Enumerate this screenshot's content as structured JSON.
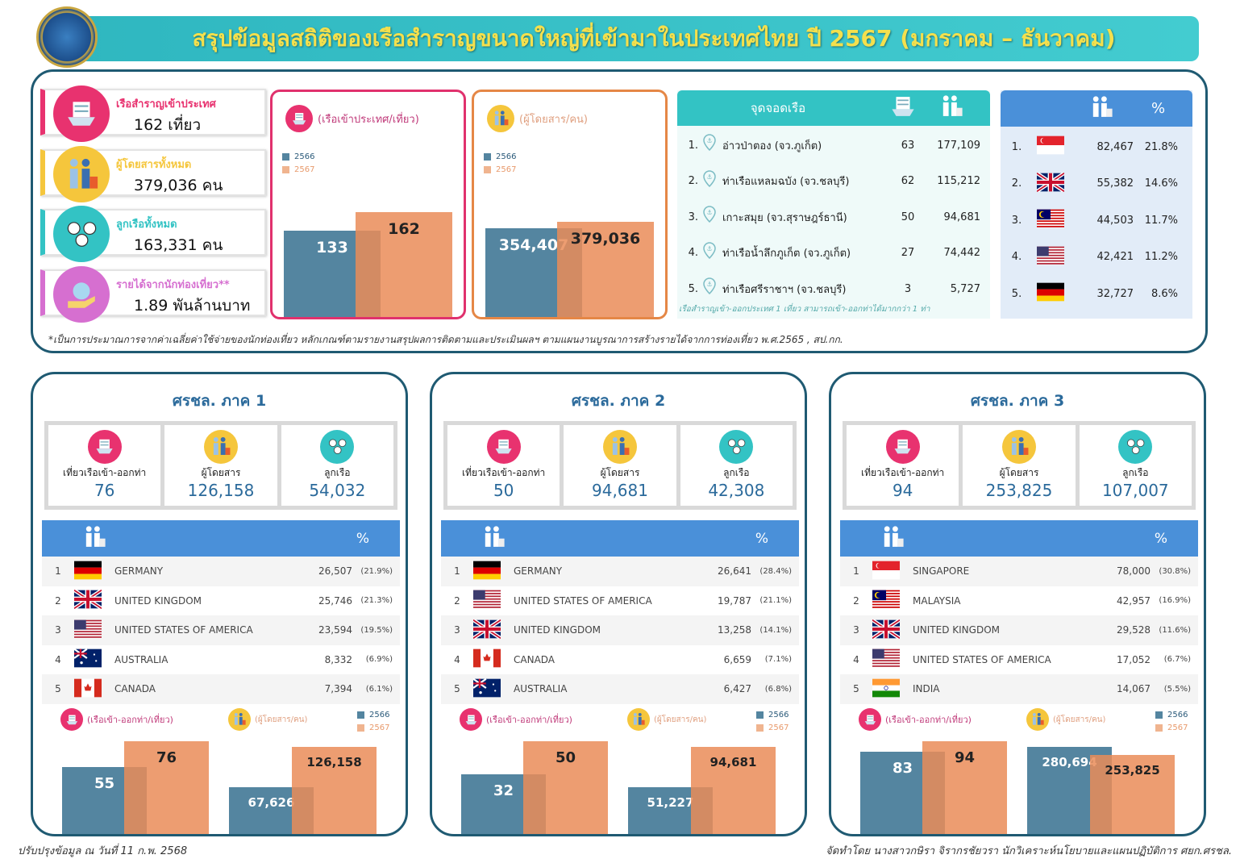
{
  "header": {
    "title": "สรุปข้อมูลสถิติของเรือสำราญขนาดใหญ่ที่เข้ามาในประเทศไทย ปี 2567 (มกราคม – ธันวาคม)"
  },
  "summary": {
    "cards": [
      {
        "label": "เรือสำราญเข้าประเทศ",
        "value": "162 เที่ยว",
        "color": "#e8326f",
        "icon": "ship-icon"
      },
      {
        "label": "ผู้โดยสารทั้งหมด",
        "value": "379,036 คน",
        "color": "#f5c63c",
        "icon": "passengers-icon"
      },
      {
        "label": "ลูกเรือทั้งหมด",
        "value": "163,331 คน",
        "color": "#33c3c4",
        "icon": "crew-icon"
      },
      {
        "label": "รายได้จากนักท่องเที่ยว**",
        "value": "1.89 พันล้านบาท",
        "color": "#d66fd0",
        "icon": "money-bag-icon"
      }
    ]
  },
  "chart_data": [
    {
      "type": "bar",
      "title": "(เรือเข้าประเทศ/เที่ยว)",
      "categories": [
        "2566",
        "2567"
      ],
      "values": [
        133,
        162
      ]
    },
    {
      "type": "bar",
      "title": "(ผู้โดยสาร/คน)",
      "categories": [
        "2566",
        "2567"
      ],
      "values": [
        354407,
        379036
      ]
    },
    {
      "type": "bar",
      "title": "(เรือเข้า-ออกท่า/เที่ยว)",
      "categories": [
        "2566",
        "2567"
      ],
      "values": [
        55,
        76
      ]
    },
    {
      "type": "bar",
      "title": "(ผู้โดยสาร/คน)",
      "categories": [
        "2566",
        "2567"
      ],
      "values": [
        67626,
        126158
      ]
    },
    {
      "type": "bar",
      "title": "(เรือเข้า-ออกท่า/เที่ยว)",
      "categories": [
        "2566",
        "2567"
      ],
      "values": [
        32,
        50
      ]
    },
    {
      "type": "bar",
      "title": "(ผู้โดยสาร/คน)",
      "categories": [
        "2566",
        "2567"
      ],
      "values": [
        51227,
        94681
      ]
    },
    {
      "type": "bar",
      "title": "(เรือเข้า-ออกท่า/เที่ยว)",
      "categories": [
        "2566",
        "2567"
      ],
      "values": [
        83,
        94
      ]
    },
    {
      "type": "bar",
      "title": "(ผู้โดยสาร/คน)",
      "categories": [
        "2566",
        "2567"
      ],
      "values": [
        280694,
        253825
      ]
    }
  ],
  "colors": {
    "y2566": "#5485a0",
    "y2567": "#ea8c58",
    "accent": "#1f5a72"
  },
  "ports": {
    "header": "จุดจอดเรือ",
    "rows": [
      {
        "rank": "1.",
        "name": "อ่าวป่าตอง (จว.ภูเก็ต)",
        "trips": "63",
        "passengers": "177,109"
      },
      {
        "rank": "2.",
        "name": "ท่าเรือแหลมฉบัง (จว.ชลบุรี)",
        "trips": "62",
        "passengers": "115,212"
      },
      {
        "rank": "3.",
        "name": "เกาะสมุย (จว.สุราษฎร์ธานี)",
        "trips": "50",
        "passengers": "94,681"
      },
      {
        "rank": "4.",
        "name": "ท่าเรือน้ำลึกภูเก็ต (จว.ภูเก็ต)",
        "trips": "27",
        "passengers": "74,442"
      },
      {
        "rank": "5.",
        "name": "ท่าเรือศรีราชาฯ (จว.ชลบุรี)",
        "trips": "3",
        "passengers": "5,727"
      }
    ],
    "note": "เรือสำราญเข้า-ออกประเทศ 1 เที่ยว สามารถเข้า-ออกท่าได้มากกว่า 1 ท่า"
  },
  "countries": {
    "pct_label": "%",
    "rows": [
      {
        "rank": "1.",
        "flag": "SG",
        "passengers": "82,467",
        "pct": "21.8%"
      },
      {
        "rank": "2.",
        "flag": "GB",
        "passengers": "55,382",
        "pct": "14.6%"
      },
      {
        "rank": "3.",
        "flag": "MY",
        "passengers": "44,503",
        "pct": "11.7%"
      },
      {
        "rank": "4.",
        "flag": "US",
        "passengers": "42,421",
        "pct": "11.2%"
      },
      {
        "rank": "5.",
        "flag": "DE",
        "passengers": "32,727",
        "pct": "8.6%"
      }
    ]
  },
  "footnote": "*เป็นการประมาณการจากค่าเฉลี่ยค่าใช้จ่ายของนักท่องเที่ยว หลักเกณฑ์ตามรายงานสรุปผลการติดตามและประเมินผลฯ ตามแผนงานบูรณาการสร้างรายได้จากการท่องเที่ยว พ.ศ.2565 , สป.กก.",
  "regions": [
    {
      "title": "ศรชล. ภาค 1",
      "stats": [
        {
          "label": "เที่ยวเรือเข้า-ออกท่า",
          "value": "76"
        },
        {
          "label": "ผู้โดยสาร",
          "value": "126,158"
        },
        {
          "label": "ลูกเรือ",
          "value": "54,032"
        }
      ],
      "pct_label": "%",
      "rows": [
        {
          "rank": "1",
          "flag": "DE",
          "country": "GERMANY",
          "value": "26,507",
          "pct": "(21.9%)"
        },
        {
          "rank": "2",
          "flag": "GB",
          "country": "UNITED KINGDOM",
          "value": "25,746",
          "pct": "(21.3%)"
        },
        {
          "rank": "3",
          "flag": "US",
          "country": "UNITED STATES OF AMERICA",
          "value": "23,594",
          "pct": "(19.5%)"
        },
        {
          "rank": "4",
          "flag": "AU",
          "country": "AUSTRALIA",
          "value": "8,332",
          "pct": "(6.9%)"
        },
        {
          "rank": "5",
          "flag": "CA",
          "country": "CANADA",
          "value": "7,394",
          "pct": "(6.1%)"
        }
      ]
    },
    {
      "title": "ศรชล. ภาค 2",
      "stats": [
        {
          "label": "เที่ยวเรือเข้า-ออกท่า",
          "value": "50"
        },
        {
          "label": "ผู้โดยสาร",
          "value": "94,681"
        },
        {
          "label": "ลูกเรือ",
          "value": "42,308"
        }
      ],
      "pct_label": "%",
      "rows": [
        {
          "rank": "1",
          "flag": "DE",
          "country": "GERMANY",
          "value": "26,641",
          "pct": "(28.4%)"
        },
        {
          "rank": "2",
          "flag": "US",
          "country": "UNITED STATES OF AMERICA",
          "value": "19,787",
          "pct": "(21.1%)"
        },
        {
          "rank": "3",
          "flag": "GB",
          "country": "UNITED KINGDOM",
          "value": "13,258",
          "pct": "(14.1%)"
        },
        {
          "rank": "4",
          "flag": "CA",
          "country": "CANADA",
          "value": "6,659",
          "pct": "(7.1%)"
        },
        {
          "rank": "5",
          "flag": "AU",
          "country": "AUSTRALIA",
          "value": "6,427",
          "pct": "(6.8%)"
        }
      ]
    },
    {
      "title": "ศรชล. ภาค 3",
      "stats": [
        {
          "label": "เที่ยวเรือเข้า-ออกท่า",
          "value": "94"
        },
        {
          "label": "ผู้โดยสาร",
          "value": "253,825"
        },
        {
          "label": "ลูกเรือ",
          "value": "107,007"
        }
      ],
      "pct_label": "%",
      "rows": [
        {
          "rank": "1",
          "flag": "SG",
          "country": "SINGAPORE",
          "value": "78,000",
          "pct": "(30.8%)"
        },
        {
          "rank": "2",
          "flag": "MY",
          "country": "MALAYSIA",
          "value": "42,957",
          "pct": "(16.9%)"
        },
        {
          "rank": "3",
          "flag": "GB",
          "country": "UNITED KINGDOM",
          "value": "29,528",
          "pct": "(11.6%)"
        },
        {
          "rank": "4",
          "flag": "US",
          "country": "UNITED STATES OF AMERICA",
          "value": "17,052",
          "pct": "(6.7%)"
        },
        {
          "rank": "5",
          "flag": "IN",
          "country": "INDIA",
          "value": "14,067",
          "pct": "(5.5%)"
        }
      ]
    }
  ],
  "footer": {
    "left": "ปรับปรุงข้อมูล ณ วันที่ 11 ก.พ. 2568",
    "right": "จัดทำโดย นางสาวกษิรา จิรากรชัยวรา นักวิเคราะห์นโยบายและแผนปฏิบัติการ ศยก.ศรชล."
  }
}
